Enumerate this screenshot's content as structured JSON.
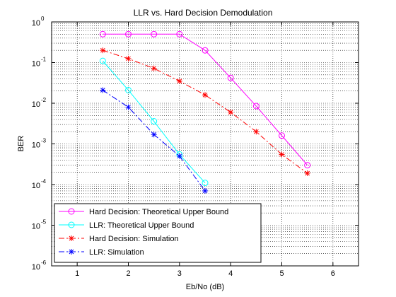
{
  "chart_data": {
    "type": "line",
    "title": "LLR vs. Hard Decision Demodulation",
    "xlabel": "Eb/No (dB)",
    "ylabel": "BER",
    "xlim": [
      0.5,
      6.5
    ],
    "ylim": [
      1e-06,
      1
    ],
    "yscale": "log",
    "grid": "dotted minor log grid",
    "xticks": [
      "1",
      "2",
      "3",
      "4",
      "5",
      "6"
    ],
    "xtick_values": [
      1,
      2,
      3,
      4,
      5,
      6
    ],
    "yticks": [
      {
        "base": "10",
        "exp": "0",
        "value": 1
      },
      {
        "base": "10",
        "exp": "-1",
        "value": 0.1
      },
      {
        "base": "10",
        "exp": "-2",
        "value": 0.01
      },
      {
        "base": "10",
        "exp": "-3",
        "value": 0.001
      },
      {
        "base": "10",
        "exp": "-4",
        "value": 0.0001
      },
      {
        "base": "10",
        "exp": "-5",
        "value": 1e-05
      },
      {
        "base": "10",
        "exp": "-6",
        "value": 1e-06
      }
    ],
    "legend_position": "bottom-left",
    "series": [
      {
        "name": "Hard Decision: Theoretical Upper Bound",
        "color": "#ff00ff",
        "marker": "circle",
        "line": "solid",
        "x": [
          1.5,
          2,
          2.5,
          3,
          3.5,
          4,
          4.5,
          5,
          5.5
        ],
        "y": [
          0.5,
          0.5,
          0.5,
          0.5,
          0.2,
          0.042,
          0.0085,
          0.0016,
          0.0003
        ]
      },
      {
        "name": "LLR: Theoretical Upper Bound",
        "color": "#00ffff",
        "marker": "circle",
        "line": "solid",
        "x": [
          1.5,
          2,
          2.5,
          3,
          3.5
        ],
        "y": [
          0.11,
          0.021,
          0.0036,
          0.00055,
          0.00011
        ]
      },
      {
        "name": "Hard Decision: Simulation",
        "color": "#ff0000",
        "marker": "star",
        "line": "dashdot",
        "x": [
          1.5,
          2,
          2.5,
          3,
          3.5,
          4,
          4.5,
          5,
          5.5
        ],
        "y": [
          0.2,
          0.125,
          0.072,
          0.035,
          0.016,
          0.006,
          0.002,
          0.00055,
          0.00019
        ]
      },
      {
        "name": "LLR: Simulation",
        "color": "#0000ff",
        "marker": "star",
        "line": "dashdot",
        "x": [
          1.5,
          2,
          2.5,
          3,
          3.5
        ],
        "y": [
          0.021,
          0.008,
          0.0017,
          0.0005,
          7e-05
        ]
      }
    ]
  }
}
